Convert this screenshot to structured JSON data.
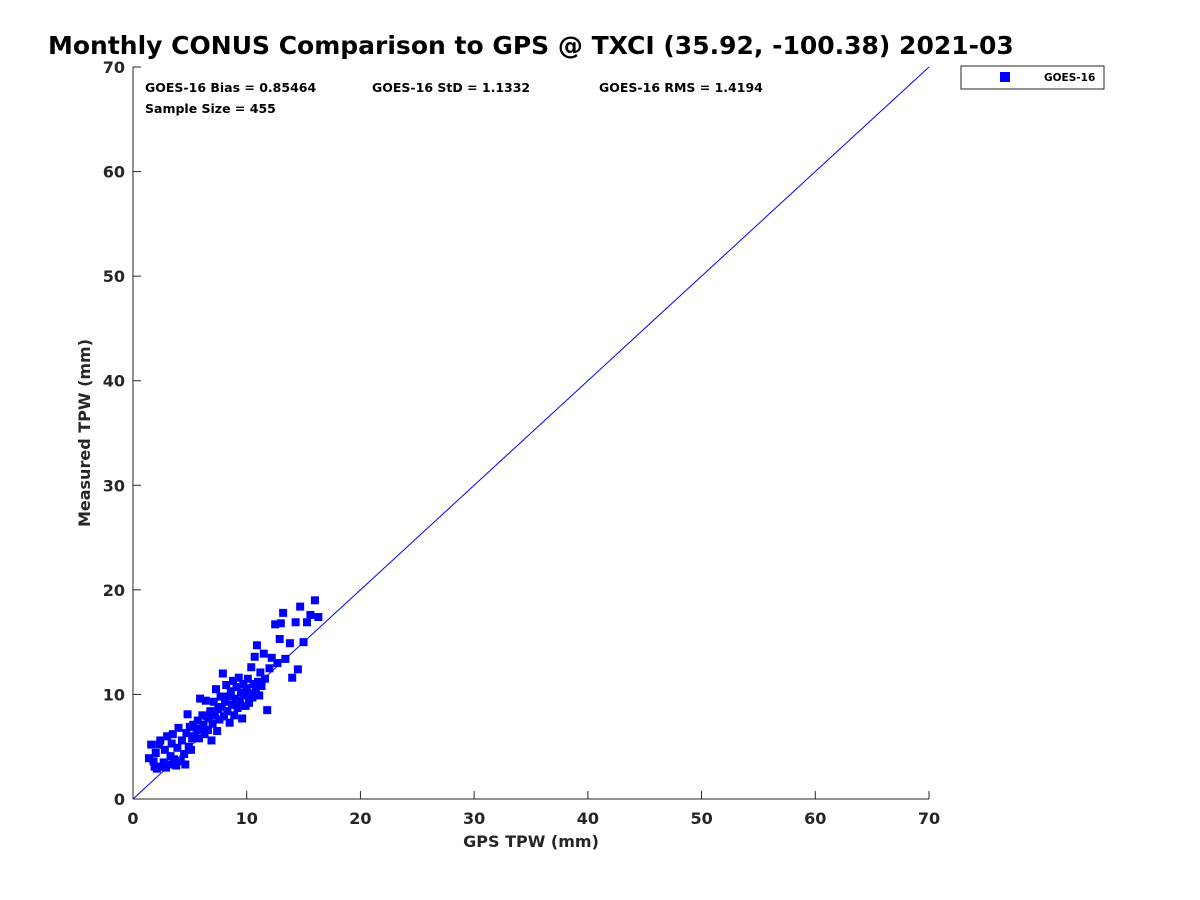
{
  "chart_data": {
    "type": "scatter",
    "title": "Monthly CONUS Comparison to GPS @ TXCI (35.92, -100.38) 2021-03",
    "xlabel": "GPS TPW (mm)",
    "ylabel": "Measured TPW (mm)",
    "xlim": [
      0,
      70
    ],
    "ylim": [
      0,
      70
    ],
    "xticks": [
      "0",
      "10",
      "20",
      "30",
      "40",
      "50",
      "60",
      "70"
    ],
    "yticks": [
      "0",
      "10",
      "20",
      "30",
      "40",
      "50",
      "60",
      "70"
    ],
    "grid": false,
    "legend_position": "top-right, outside plot",
    "stats": {
      "bias": "GOES-16 Bias = 0.85464",
      "std": "GOES-16 StD = 1.1332",
      "rms": "GOES-16 RMS = 1.4194",
      "sample_size": "Sample Size = 455"
    },
    "reference_line": {
      "x": [
        0,
        70
      ],
      "y": [
        0,
        70
      ],
      "color": "#0000ff"
    },
    "series": [
      {
        "name": "GOES-16",
        "color": "#0000ff",
        "marker": "square",
        "points": [
          [
            1.4,
            3.9
          ],
          [
            1.6,
            5.2
          ],
          [
            1.8,
            3.6
          ],
          [
            1.9,
            3.1
          ],
          [
            2.1,
            2.9
          ],
          [
            2.0,
            4.4
          ],
          [
            2.3,
            5.2
          ],
          [
            2.5,
            3.1
          ],
          [
            2.4,
            5.6
          ],
          [
            2.7,
            3.5
          ],
          [
            2.9,
            3.0
          ],
          [
            2.8,
            4.7
          ],
          [
            3.0,
            6.0
          ],
          [
            3.2,
            3.3
          ],
          [
            3.3,
            4.1
          ],
          [
            3.4,
            5.3
          ],
          [
            3.6,
            3.8
          ],
          [
            3.5,
            6.2
          ],
          [
            3.8,
            3.2
          ],
          [
            3.9,
            4.9
          ],
          [
            4.0,
            6.8
          ],
          [
            4.2,
            3.6
          ],
          [
            4.3,
            5.6
          ],
          [
            4.5,
            4.3
          ],
          [
            4.6,
            3.3
          ],
          [
            4.7,
            6.3
          ],
          [
            4.8,
            8.1
          ],
          [
            4.9,
            5.0
          ],
          [
            5.0,
            6.9
          ],
          [
            5.1,
            4.7
          ],
          [
            5.2,
            5.8
          ],
          [
            5.3,
            7.1
          ],
          [
            5.4,
            6.0
          ],
          [
            5.6,
            6.6
          ],
          [
            5.7,
            7.5
          ],
          [
            5.8,
            5.8
          ],
          [
            5.9,
            9.6
          ],
          [
            6.0,
            6.7
          ],
          [
            6.1,
            8.0
          ],
          [
            6.2,
            7.1
          ],
          [
            6.3,
            6.2
          ],
          [
            6.4,
            9.4
          ],
          [
            6.5,
            7.9
          ],
          [
            6.6,
            6.6
          ],
          [
            6.7,
            7.7
          ],
          [
            6.8,
            8.4
          ],
          [
            6.9,
            5.6
          ],
          [
            7.0,
            7.2
          ],
          [
            7.1,
            9.3
          ],
          [
            7.2,
            8.0
          ],
          [
            7.3,
            10.5
          ],
          [
            7.4,
            6.5
          ],
          [
            7.5,
            8.6
          ],
          [
            7.6,
            7.6
          ],
          [
            7.7,
            9.8
          ],
          [
            7.8,
            8.8
          ],
          [
            7.9,
            12.0
          ],
          [
            8.0,
            7.9
          ],
          [
            8.1,
            9.3
          ],
          [
            8.2,
            10.9
          ],
          [
            8.3,
            8.4
          ],
          [
            8.4,
            9.8
          ],
          [
            8.5,
            7.3
          ],
          [
            8.6,
            10.3
          ],
          [
            8.7,
            9.0
          ],
          [
            8.8,
            11.3
          ],
          [
            8.9,
            8.0
          ],
          [
            9.0,
            9.6
          ],
          [
            9.1,
            10.7
          ],
          [
            9.2,
            8.7
          ],
          [
            9.3,
            11.6
          ],
          [
            9.4,
            9.4
          ],
          [
            9.5,
            10.2
          ],
          [
            9.6,
            7.7
          ],
          [
            9.7,
            11.0
          ],
          [
            9.8,
            9.9
          ],
          [
            9.9,
            8.9
          ],
          [
            10.0,
            10.6
          ],
          [
            10.1,
            11.5
          ],
          [
            10.2,
            9.2
          ],
          [
            10.3,
            10.1
          ],
          [
            10.4,
            12.6
          ],
          [
            10.5,
            9.7
          ],
          [
            10.6,
            11.0
          ],
          [
            10.7,
            13.6
          ],
          [
            10.8,
            10.4
          ],
          [
            10.9,
            14.7
          ],
          [
            11.0,
            11.2
          ],
          [
            11.1,
            9.9
          ],
          [
            11.2,
            12.1
          ],
          [
            11.3,
            10.8
          ],
          [
            11.5,
            13.9
          ],
          [
            11.6,
            11.5
          ],
          [
            11.8,
            8.5
          ],
          [
            12.0,
            12.5
          ],
          [
            12.2,
            13.5
          ],
          [
            12.5,
            16.7
          ],
          [
            12.7,
            13.0
          ],
          [
            12.9,
            15.3
          ],
          [
            13.2,
            17.8
          ],
          [
            13.4,
            13.4
          ],
          [
            13.8,
            14.9
          ],
          [
            14.0,
            11.6
          ],
          [
            14.3,
            16.9
          ],
          [
            14.5,
            12.4
          ],
          [
            14.7,
            18.4
          ],
          [
            15.0,
            15.0
          ],
          [
            15.3,
            16.9
          ],
          [
            15.6,
            17.6
          ],
          [
            16.0,
            19.0
          ],
          [
            16.3,
            17.4
          ],
          [
            13.0,
            16.8
          ]
        ]
      }
    ]
  }
}
